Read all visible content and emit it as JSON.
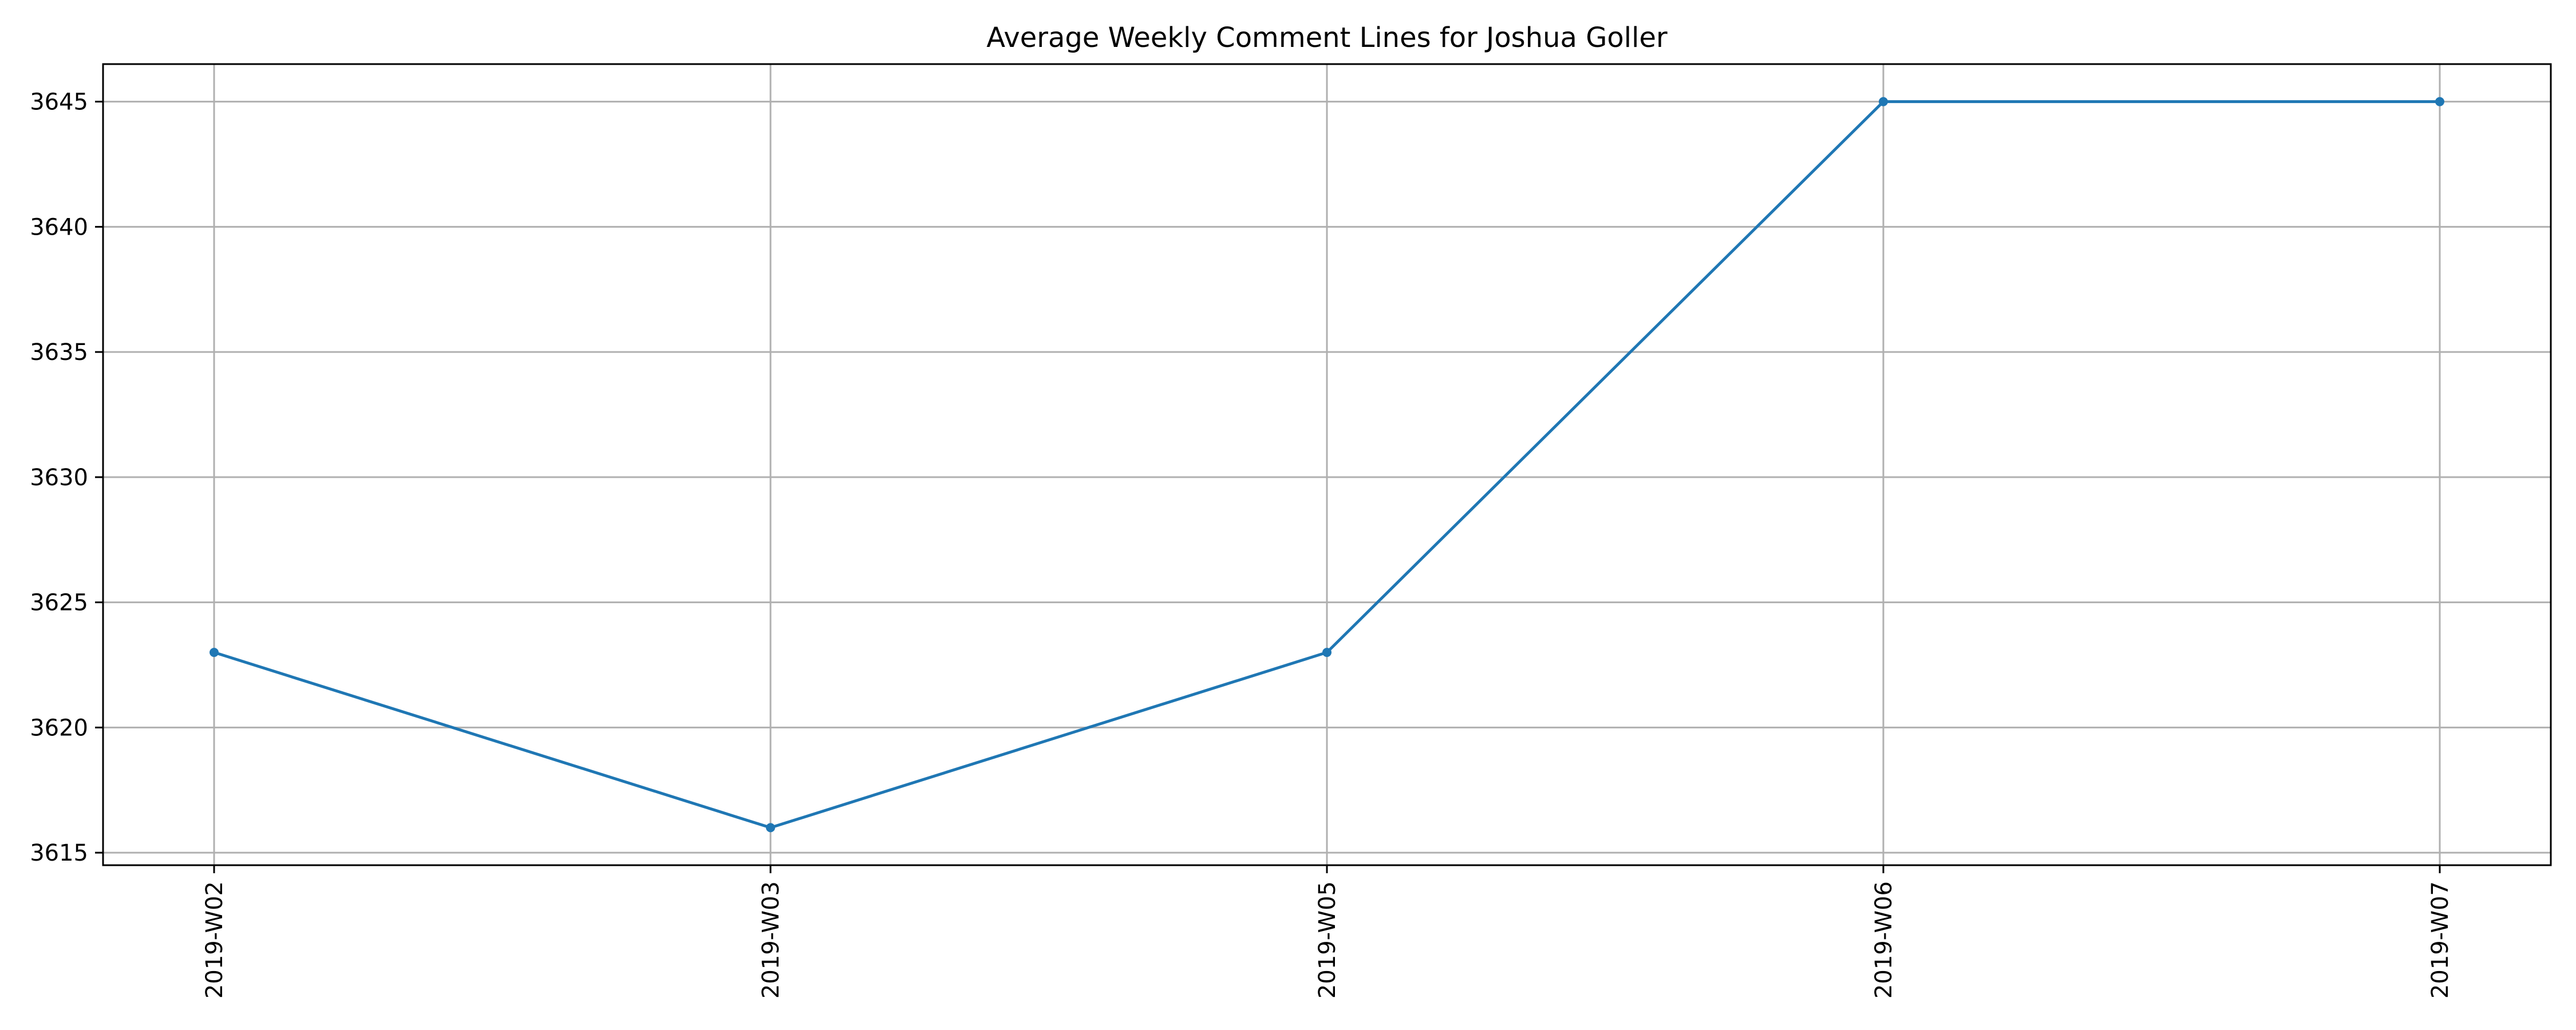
{
  "chart_data": {
    "type": "line",
    "title": "Average Weekly Comment Lines for Joshua Goller",
    "xlabel": "",
    "ylabel": "",
    "categories": [
      "2019-W02",
      "2019-W03",
      "2019-W05",
      "2019-W06",
      "2019-W07"
    ],
    "series": [
      {
        "values": [
          3623,
          3616,
          3623,
          3645,
          3645
        ]
      }
    ],
    "ylim": [
      3614.5,
      3646.5
    ],
    "yticks": [
      3615,
      3620,
      3625,
      3630,
      3635,
      3640,
      3645
    ],
    "grid": true,
    "line_color": "#1f77b4",
    "grid_color": "#b0b0b0"
  }
}
